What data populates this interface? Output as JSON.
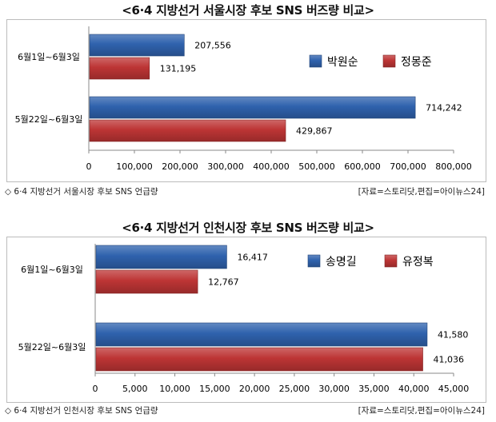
{
  "chart_data": [
    {
      "type": "bar",
      "orientation": "horizontal",
      "title": "<6·4 지방선거 서울시장 후보 SNS 버즈량 비교>",
      "categories": [
        "6월1일~6월3일",
        "5월22일~6월3일"
      ],
      "series": [
        {
          "name": "박원순",
          "color": "#2f62ad",
          "values": [
            207556,
            714242
          ],
          "labels": [
            "207,556",
            "714,242"
          ]
        },
        {
          "name": "정몽준",
          "color": "#bd3535",
          "values": [
            131195,
            429867
          ],
          "labels": [
            "131,195",
            "429,867"
          ]
        }
      ],
      "xlim": [
        0,
        800000
      ],
      "x_ticks": [
        "0",
        "100,000",
        "200,000",
        "300,000",
        "400,000",
        "500,000",
        "600,000",
        "700,000",
        "800,000"
      ],
      "legend_position": "right",
      "note": "◇ 6·4 지방선거 서울시장 후보 SNS 언급량",
      "source": "[자료=스토리닷,편집=아이뉴스24]"
    },
    {
      "type": "bar",
      "orientation": "horizontal",
      "title": "<6·4 지방선거 인천시장 후보 SNS 버즈량 비교>",
      "categories": [
        "6월1일~6월3일",
        "5월22일~6월3일"
      ],
      "series": [
        {
          "name": "송명길",
          "color": "#2f62ad",
          "values": [
            16417,
            41580
          ],
          "labels": [
            "16,417",
            "41,580"
          ]
        },
        {
          "name": "유정복",
          "color": "#bd3535",
          "values": [
            12767,
            41036
          ],
          "labels": [
            "12,767",
            "41,036"
          ]
        }
      ],
      "xlim": [
        0,
        45000
      ],
      "x_ticks": [
        "0",
        "5,000",
        "10,000",
        "15,000",
        "20,000",
        "25,000",
        "30,000",
        "35,000",
        "40,000",
        "45,000"
      ],
      "legend_position": "right",
      "note": "◇ 6·4 지방선거 인천시장 후보 SNS 언급량",
      "source": "[자료=스토리닷,편집=아이뉴스24]"
    }
  ]
}
